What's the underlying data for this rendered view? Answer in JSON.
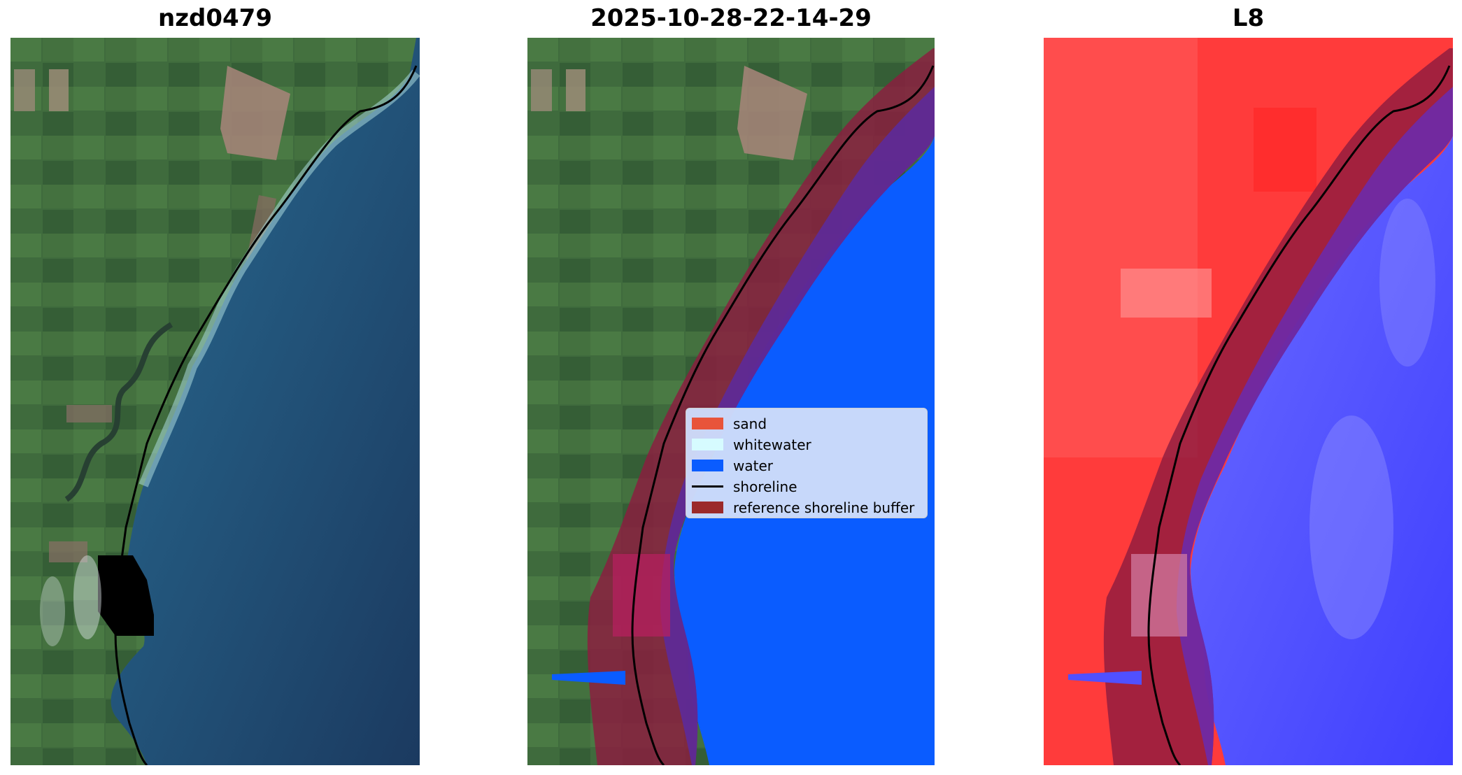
{
  "panels": [
    {
      "title": "nzd0479"
    },
    {
      "title": "2025-10-28-22-14-29"
    },
    {
      "title": "L8"
    }
  ],
  "legend": {
    "items": [
      {
        "label": "sand",
        "color": "#e8543a",
        "kind": "patch"
      },
      {
        "label": "whitewater",
        "color": "#d6fbff",
        "kind": "patch"
      },
      {
        "label": "water",
        "color": "#0a5cff",
        "kind": "patch"
      },
      {
        "label": "shoreline",
        "color": "#000000",
        "kind": "line"
      },
      {
        "label": "reference shoreline buffer",
        "color": "#9b2a2a",
        "kind": "patch"
      }
    ]
  },
  "colors": {
    "land_green": "#3d6a3c",
    "ocean_dark": "#1c3e63",
    "ocean_light": "#3f8fa8",
    "classified_water": "#0a5cff",
    "buffer_overlay": "#8c1c40",
    "l8_land_red": "#ff3a3a",
    "l8_water_blue": "#4a4cff"
  }
}
